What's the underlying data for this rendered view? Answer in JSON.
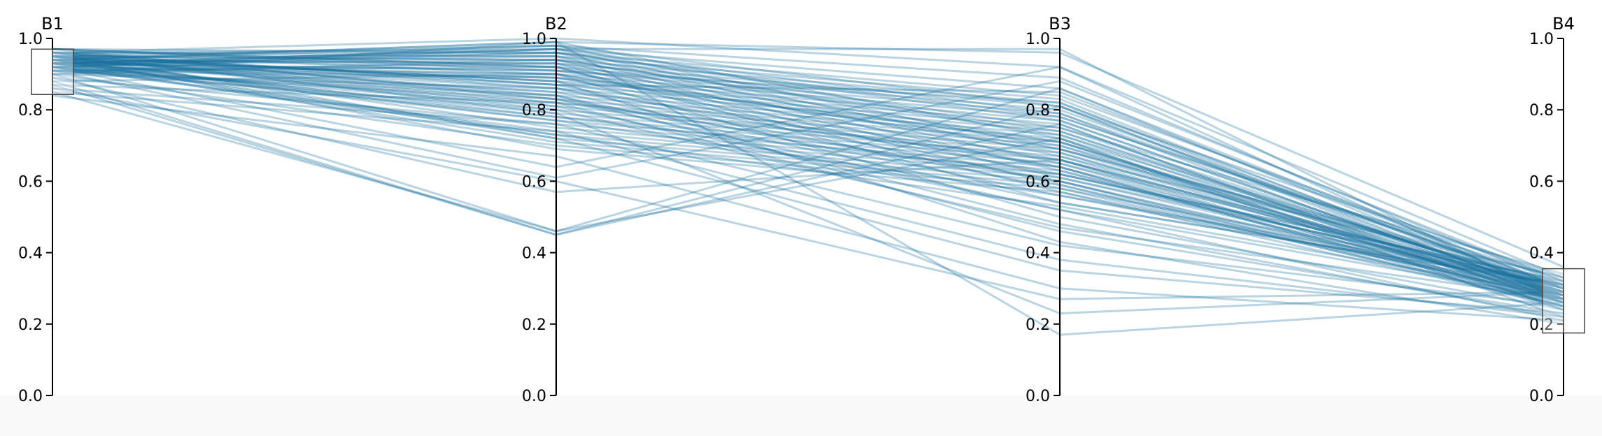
{
  "chart_data": {
    "type": "parallel-coordinates",
    "line_color": "#1a6fa0",
    "dimensions": [
      {
        "name": "B1",
        "range": [
          0,
          1
        ],
        "ticks": [
          "0.0",
          "0.2",
          "0.4",
          "0.6",
          "0.8",
          "1.0"
        ],
        "brush": [
          0.843,
          0.97
        ]
      },
      {
        "name": "B2",
        "range": [
          0,
          1
        ],
        "ticks": [
          "0.0",
          "0.2",
          "0.4",
          "0.6",
          "0.8",
          "1.0"
        ]
      },
      {
        "name": "B3",
        "range": [
          0,
          1
        ],
        "ticks": [
          "0.0",
          "0.2",
          "0.4",
          "0.6",
          "0.8",
          "1.0"
        ]
      },
      {
        "name": "B4",
        "range": [
          0,
          1
        ],
        "ticks": [
          "0.0",
          "0.2",
          "0.4",
          "0.6",
          "0.8",
          "1.0"
        ],
        "brush": [
          0.175,
          0.355
        ]
      }
    ],
    "records": [
      [
        0.94,
        0.99,
        0.96,
        0.36
      ],
      [
        0.96,
        1.0,
        0.92,
        0.33
      ],
      [
        0.95,
        0.98,
        0.89,
        0.31
      ],
      [
        0.93,
        0.97,
        0.86,
        0.3
      ],
      [
        0.92,
        0.96,
        0.84,
        0.32
      ],
      [
        0.96,
        0.95,
        0.83,
        0.28
      ],
      [
        0.95,
        0.94,
        0.82,
        0.29
      ],
      [
        0.94,
        0.93,
        0.81,
        0.27
      ],
      [
        0.97,
        0.92,
        0.8,
        0.3
      ],
      [
        0.93,
        0.91,
        0.79,
        0.26
      ],
      [
        0.92,
        0.9,
        0.78,
        0.31
      ],
      [
        0.91,
        0.89,
        0.77,
        0.28
      ],
      [
        0.95,
        0.88,
        0.76,
        0.25
      ],
      [
        0.96,
        0.87,
        0.75,
        0.29
      ],
      [
        0.9,
        0.86,
        0.74,
        0.27
      ],
      [
        0.94,
        0.85,
        0.73,
        0.3
      ],
      [
        0.93,
        0.84,
        0.72,
        0.24
      ],
      [
        0.97,
        0.83,
        0.71,
        0.28
      ],
      [
        0.92,
        0.82,
        0.7,
        0.26
      ],
      [
        0.95,
        0.81,
        0.69,
        0.31
      ],
      [
        0.91,
        0.8,
        0.68,
        0.29
      ],
      [
        0.96,
        0.79,
        0.67,
        0.27
      ],
      [
        0.94,
        0.78,
        0.66,
        0.25
      ],
      [
        0.93,
        0.77,
        0.65,
        0.3
      ],
      [
        0.89,
        0.76,
        0.64,
        0.28
      ],
      [
        0.95,
        0.75,
        0.63,
        0.26
      ],
      [
        0.92,
        0.74,
        0.62,
        0.32
      ],
      [
        0.94,
        0.73,
        0.61,
        0.29
      ],
      [
        0.96,
        0.72,
        0.6,
        0.27
      ],
      [
        0.93,
        0.71,
        0.59,
        0.25
      ],
      [
        0.9,
        0.7,
        0.58,
        0.31
      ],
      [
        0.95,
        0.69,
        0.57,
        0.28
      ],
      [
        0.94,
        0.98,
        0.81,
        0.33
      ],
      [
        0.92,
        0.97,
        0.79,
        0.3
      ],
      [
        0.96,
        0.96,
        0.77,
        0.28
      ],
      [
        0.93,
        0.95,
        0.75,
        0.34
      ],
      [
        0.95,
        0.94,
        0.73,
        0.26
      ],
      [
        0.91,
        0.93,
        0.71,
        0.29
      ],
      [
        0.94,
        0.92,
        0.7,
        0.31
      ],
      [
        0.97,
        0.91,
        0.68,
        0.27
      ],
      [
        0.93,
        0.9,
        0.66,
        0.3
      ],
      [
        0.92,
        0.89,
        0.64,
        0.25
      ],
      [
        0.95,
        0.88,
        0.62,
        0.32
      ],
      [
        0.94,
        0.87,
        0.6,
        0.28
      ],
      [
        0.96,
        0.86,
        0.58,
        0.26
      ],
      [
        0.93,
        0.85,
        0.56,
        0.29
      ],
      [
        0.91,
        0.84,
        0.54,
        0.31
      ],
      [
        0.95,
        0.83,
        0.52,
        0.27
      ],
      [
        0.94,
        0.99,
        0.72,
        0.3
      ],
      [
        0.92,
        0.98,
        0.69,
        0.28
      ],
      [
        0.96,
        0.97,
        0.67,
        0.33
      ],
      [
        0.93,
        0.96,
        0.65,
        0.26
      ],
      [
        0.95,
        0.95,
        0.63,
        0.29
      ],
      [
        0.9,
        0.94,
        0.61,
        0.31
      ],
      [
        0.94,
        0.93,
        0.59,
        0.27
      ],
      [
        0.97,
        0.92,
        0.57,
        0.25
      ],
      [
        0.88,
        0.9,
        0.5,
        0.24
      ],
      [
        0.87,
        0.82,
        0.46,
        0.23
      ],
      [
        0.86,
        0.76,
        0.42,
        0.25
      ],
      [
        0.85,
        0.74,
        0.38,
        0.22
      ],
      [
        0.84,
        0.67,
        0.3,
        0.21
      ],
      [
        0.86,
        0.6,
        0.27,
        0.29
      ],
      [
        0.85,
        0.46,
        0.86,
        0.28
      ],
      [
        0.88,
        0.45,
        0.81,
        0.26
      ],
      [
        0.87,
        0.45,
        0.76,
        0.24
      ],
      [
        0.9,
        0.46,
        0.72,
        0.22
      ],
      [
        0.89,
        0.57,
        0.66,
        0.3
      ],
      [
        0.91,
        0.61,
        0.88,
        0.32
      ],
      [
        0.92,
        0.64,
        0.92,
        0.27
      ],
      [
        0.9,
        0.99,
        0.17,
        0.26
      ],
      [
        0.93,
        0.79,
        0.23,
        0.29
      ],
      [
        0.94,
        0.72,
        0.35,
        0.23
      ],
      [
        0.95,
        0.88,
        0.43,
        0.2
      ],
      [
        0.96,
        0.84,
        0.48,
        0.22
      ],
      [
        0.92,
        0.81,
        0.52,
        0.21
      ],
      [
        0.93,
        0.97,
        0.97,
        0.26
      ],
      [
        0.91,
        0.92,
        0.54,
        0.31
      ],
      [
        0.95,
        0.8,
        0.47,
        0.27
      ],
      [
        0.94,
        0.86,
        0.64,
        0.24
      ],
      [
        0.96,
        0.9,
        0.69,
        0.33
      ],
      [
        0.93,
        0.94,
        0.74,
        0.29
      ],
      [
        0.92,
        0.78,
        0.62,
        0.3
      ],
      [
        0.95,
        0.82,
        0.66,
        0.28
      ],
      [
        0.94,
        0.89,
        0.71,
        0.26
      ],
      [
        0.97,
        0.96,
        0.78,
        0.32
      ],
      [
        0.93,
        0.91,
        0.82,
        0.27
      ],
      [
        0.96,
        0.87,
        0.85,
        0.3
      ],
      [
        0.91,
        0.83,
        0.6,
        0.25
      ],
      [
        0.94,
        0.77,
        0.56,
        0.31
      ],
      [
        0.92,
        0.73,
        0.53,
        0.28
      ]
    ]
  }
}
